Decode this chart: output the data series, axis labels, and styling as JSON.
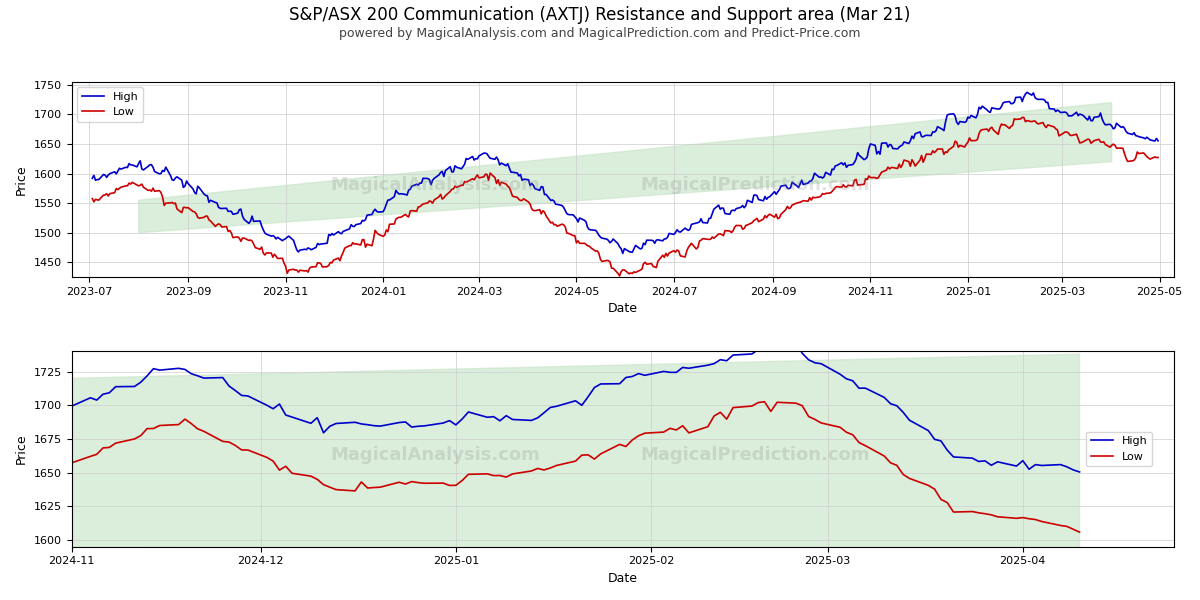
{
  "title": "S&P/ASX 200 Communication (AXTJ) Resistance and Support area (Mar 21)",
  "subtitle": "powered by MagicalAnalysis.com and MagicalPrediction.com and Predict-Price.com",
  "xlabel": "Date",
  "ylabel": "Price",
  "title_fontsize": 12,
  "subtitle_fontsize": 9,
  "line_high_color": "#0000cc",
  "line_low_color": "#cc0000",
  "band_color": "#c8e6c9",
  "background_color": "#ffffff",
  "grid_color": "#cccccc"
}
